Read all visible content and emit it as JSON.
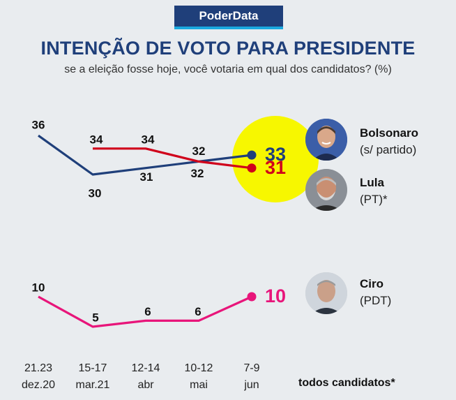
{
  "header": {
    "brand": "PoderData",
    "title": "INTENÇÃO DE VOTO PARA PRESIDENTE",
    "subtitle": "se a eleição fosse hoje, você votaria em qual dos candidatos? (%)"
  },
  "colors": {
    "brand_bg": "#1f3f7a",
    "brand_accent": "#1aa9e0",
    "bolsonaro": "#1f3f7a",
    "lula": "#d0021b",
    "ciro": "#e8157a",
    "highlight": "#f7f700"
  },
  "candidates": [
    {
      "name": "Bolsonaro",
      "party": "(s/ partido)",
      "icon": "portrait-bolsonaro"
    },
    {
      "name": "Lula",
      "party": "(PT)*",
      "icon": "portrait-lula"
    },
    {
      "name": "Ciro",
      "party": "(PDT)",
      "icon": "portrait-ciro"
    }
  ],
  "footer_note": "todos candidatos*",
  "chart_data": {
    "type": "line",
    "x": [
      {
        "line1": "21.23",
        "line2": "dez.20"
      },
      {
        "line1": "15-17",
        "line2": "mar.21"
      },
      {
        "line1": "12-14",
        "line2": "abr"
      },
      {
        "line1": "10-12",
        "line2": "mai"
      },
      {
        "line1": "7-9",
        "line2": "jun"
      }
    ],
    "series": [
      {
        "name": "Bolsonaro",
        "values": [
          36,
          30,
          31,
          32,
          33
        ]
      },
      {
        "name": "Lula",
        "values": [
          null,
          34,
          34,
          32,
          31
        ]
      },
      {
        "name": "Ciro",
        "values": [
          10,
          5,
          6,
          6,
          10
        ]
      }
    ],
    "title": "INTENÇÃO DE VOTO PARA PRESIDENTE",
    "ylabel": "%",
    "grid": false,
    "legend": "right"
  }
}
